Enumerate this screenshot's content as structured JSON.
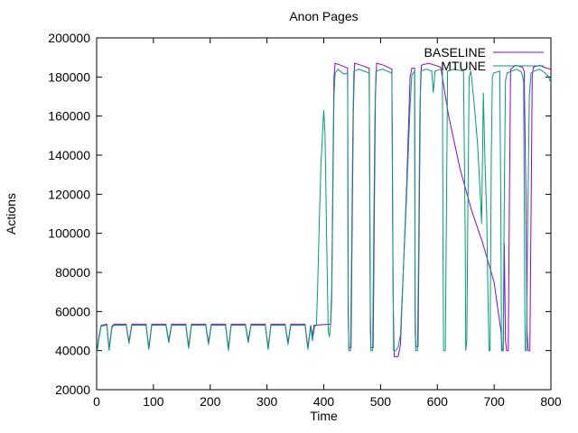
{
  "title": "Anon Pages",
  "colors": {
    "background": "#ffffff",
    "axis": "#000000",
    "text": "#000000",
    "baseline": "#9400d3",
    "mtune": "#009e73"
  },
  "chart_data": {
    "type": "line",
    "title": "Anon Pages",
    "xlabel": "Time",
    "ylabel": "Actions",
    "xlim": [
      0,
      800
    ],
    "ylim": [
      20000,
      200000
    ],
    "xticks": [
      0,
      100,
      200,
      300,
      400,
      500,
      600,
      700,
      800
    ],
    "yticks": [
      20000,
      40000,
      60000,
      80000,
      100000,
      120000,
      140000,
      160000,
      180000,
      200000
    ],
    "grid": false,
    "legend_position": "top-right-inside",
    "series": [
      {
        "name": "BASELINE",
        "color": "#9400d3",
        "points": [
          [
            0,
            38500
          ],
          [
            4,
            47000
          ],
          [
            8,
            53000
          ],
          [
            18,
            53500
          ],
          [
            22,
            41000
          ],
          [
            27,
            52500
          ],
          [
            31,
            53500
          ],
          [
            52,
            53500
          ],
          [
            57,
            44500
          ],
          [
            62,
            53500
          ],
          [
            87,
            53500
          ],
          [
            92,
            41500
          ],
          [
            97,
            53500
          ],
          [
            122,
            53500
          ],
          [
            127,
            45000
          ],
          [
            132,
            53500
          ],
          [
            157,
            53500
          ],
          [
            162,
            42000
          ],
          [
            167,
            53500
          ],
          [
            192,
            53500
          ],
          [
            197,
            44000
          ],
          [
            202,
            53500
          ],
          [
            227,
            53500
          ],
          [
            232,
            41000
          ],
          [
            237,
            53500
          ],
          [
            262,
            53500
          ],
          [
            267,
            45000
          ],
          [
            272,
            53500
          ],
          [
            297,
            53500
          ],
          [
            302,
            41500
          ],
          [
            307,
            53500
          ],
          [
            332,
            53500
          ],
          [
            337,
            44000
          ],
          [
            342,
            53500
          ],
          [
            367,
            53500
          ],
          [
            372,
            41500
          ],
          [
            377,
            53000
          ],
          [
            380,
            47500
          ],
          [
            383,
            53000
          ],
          [
            412,
            53500
          ],
          [
            414,
            70000
          ],
          [
            416,
            130000
          ],
          [
            418,
            180000
          ],
          [
            420,
            187000
          ],
          [
            430,
            186000
          ],
          [
            442,
            184500
          ],
          [
            443,
            60000
          ],
          [
            444,
            41500
          ],
          [
            448,
            41500
          ],
          [
            450,
            100000
          ],
          [
            452,
            160000
          ],
          [
            454,
            187000
          ],
          [
            466,
            186000
          ],
          [
            480,
            184500
          ],
          [
            482,
            50000
          ],
          [
            483,
            41500
          ],
          [
            487,
            41500
          ],
          [
            489,
            110000
          ],
          [
            491,
            170000
          ],
          [
            493,
            187000
          ],
          [
            506,
            186000
          ],
          [
            520,
            184000
          ],
          [
            522,
            70000
          ],
          [
            524,
            37000
          ],
          [
            531,
            37000
          ],
          [
            535,
            43000
          ],
          [
            540,
            80000
          ],
          [
            546,
            125000
          ],
          [
            552,
            180000
          ],
          [
            555,
            184500
          ],
          [
            560,
            184500
          ],
          [
            561,
            50000
          ],
          [
            562,
            42000
          ],
          [
            566,
            42000
          ],
          [
            568,
            100000
          ],
          [
            570,
            170000
          ],
          [
            572,
            186000
          ],
          [
            584,
            187000
          ],
          [
            596,
            186000
          ],
          [
            606,
            185000
          ],
          [
            620,
            160000
          ],
          [
            640,
            133000
          ],
          [
            660,
            112000
          ],
          [
            680,
            95000
          ],
          [
            700,
            75000
          ],
          [
            712,
            50000
          ],
          [
            714,
            40000
          ],
          [
            716,
            40000
          ],
          [
            718,
            95000
          ],
          [
            720,
            45000
          ],
          [
            722,
            40000
          ],
          [
            725,
            40000
          ],
          [
            727,
            120000
          ],
          [
            729,
            184000
          ],
          [
            738,
            186000
          ],
          [
            750,
            185000
          ],
          [
            753,
            183000
          ],
          [
            756,
            120000
          ],
          [
            758,
            50000
          ],
          [
            760,
            40000
          ],
          [
            763,
            40000
          ],
          [
            765,
            110000
          ],
          [
            767,
            180000
          ],
          [
            769,
            185000
          ],
          [
            780,
            186000
          ],
          [
            792,
            184500
          ],
          [
            800,
            184000
          ]
        ]
      },
      {
        "name": "MTUNE",
        "color": "#009e73",
        "points": [
          [
            0,
            37500
          ],
          [
            4,
            46000
          ],
          [
            8,
            52500
          ],
          [
            18,
            53000
          ],
          [
            22,
            40000
          ],
          [
            27,
            52000
          ],
          [
            31,
            53000
          ],
          [
            52,
            53000
          ],
          [
            57,
            43500
          ],
          [
            62,
            53000
          ],
          [
            87,
            53000
          ],
          [
            92,
            40500
          ],
          [
            97,
            53000
          ],
          [
            122,
            53000
          ],
          [
            127,
            44000
          ],
          [
            132,
            53000
          ],
          [
            157,
            53000
          ],
          [
            162,
            41000
          ],
          [
            167,
            53000
          ],
          [
            192,
            53000
          ],
          [
            197,
            43000
          ],
          [
            202,
            53000
          ],
          [
            227,
            53000
          ],
          [
            232,
            40000
          ],
          [
            237,
            53000
          ],
          [
            262,
            53000
          ],
          [
            267,
            44000
          ],
          [
            272,
            53000
          ],
          [
            297,
            53000
          ],
          [
            302,
            40500
          ],
          [
            307,
            53000
          ],
          [
            332,
            53000
          ],
          [
            337,
            43000
          ],
          [
            342,
            53000
          ],
          [
            367,
            53000
          ],
          [
            372,
            40500
          ],
          [
            377,
            52500
          ],
          [
            380,
            45000
          ],
          [
            384,
            52500
          ],
          [
            387,
            53000
          ],
          [
            389,
            70000
          ],
          [
            392,
            105000
          ],
          [
            395,
            135000
          ],
          [
            398,
            152000
          ],
          [
            400,
            163000
          ],
          [
            402,
            152000
          ],
          [
            404,
            118000
          ],
          [
            406,
            80000
          ],
          [
            408,
            50000
          ],
          [
            410,
            47000
          ],
          [
            412,
            53000
          ],
          [
            414,
            65000
          ],
          [
            416,
            120000
          ],
          [
            418,
            170000
          ],
          [
            420,
            182000
          ],
          [
            425,
            184000
          ],
          [
            435,
            181500
          ],
          [
            442,
            182000
          ],
          [
            443,
            70000
          ],
          [
            444,
            40000
          ],
          [
            447,
            40000
          ],
          [
            449,
            90000
          ],
          [
            451,
            150000
          ],
          [
            453,
            183000
          ],
          [
            462,
            184000
          ],
          [
            480,
            182000
          ],
          [
            482,
            60000
          ],
          [
            483,
            40000
          ],
          [
            486,
            40000
          ],
          [
            488,
            100000
          ],
          [
            490,
            160000
          ],
          [
            492,
            183000
          ],
          [
            504,
            184000
          ],
          [
            520,
            182000
          ],
          [
            522,
            80000
          ],
          [
            523,
            40000
          ],
          [
            527,
            40000
          ],
          [
            531,
            42000
          ],
          [
            535,
            48000
          ],
          [
            540,
            80000
          ],
          [
            546,
            120000
          ],
          [
            552,
            165000
          ],
          [
            555,
            181000
          ],
          [
            560,
            183000
          ],
          [
            561,
            60000
          ],
          [
            562,
            40000
          ],
          [
            565,
            40000
          ],
          [
            567,
            90000
          ],
          [
            569,
            160000
          ],
          [
            571,
            183000
          ],
          [
            580,
            184000
          ],
          [
            590,
            183000
          ],
          [
            593,
            172000
          ],
          [
            596,
            183000
          ],
          [
            606,
            184000
          ],
          [
            609,
            184000
          ],
          [
            610,
            90000
          ],
          [
            611,
            40000
          ],
          [
            614,
            40000
          ],
          [
            616,
            110000
          ],
          [
            618,
            183000
          ],
          [
            630,
            184000
          ],
          [
            646,
            183000
          ],
          [
            649,
            100000
          ],
          [
            650,
            40000
          ],
          [
            652,
            45000
          ],
          [
            654,
            120000
          ],
          [
            656,
            180000
          ],
          [
            659,
            183000
          ],
          [
            662,
            175000
          ],
          [
            666,
            163000
          ],
          [
            671,
            145000
          ],
          [
            676,
            118000
          ],
          [
            678,
            105000
          ],
          [
            681,
            172000
          ],
          [
            684,
            135000
          ],
          [
            687,
            108000
          ],
          [
            689,
            70000
          ],
          [
            691,
            40000
          ],
          [
            693,
            40000
          ],
          [
            695,
            140000
          ],
          [
            697,
            180000
          ],
          [
            699,
            182000
          ],
          [
            710,
            183000
          ],
          [
            712,
            100000
          ],
          [
            713,
            40000
          ],
          [
            716,
            40000
          ],
          [
            718,
            120000
          ],
          [
            720,
            178000
          ],
          [
            723,
            182000
          ],
          [
            730,
            183000
          ],
          [
            740,
            184000
          ],
          [
            748,
            182500
          ],
          [
            752,
            178000
          ],
          [
            754,
            60000
          ],
          [
            755,
            40000
          ],
          [
            757,
            40000
          ],
          [
            759,
            100000
          ],
          [
            762,
            170000
          ],
          [
            765,
            182000
          ],
          [
            770,
            183000
          ],
          [
            780,
            184000
          ],
          [
            790,
            182000
          ],
          [
            795,
            180500
          ],
          [
            800,
            177000
          ]
        ]
      }
    ]
  }
}
